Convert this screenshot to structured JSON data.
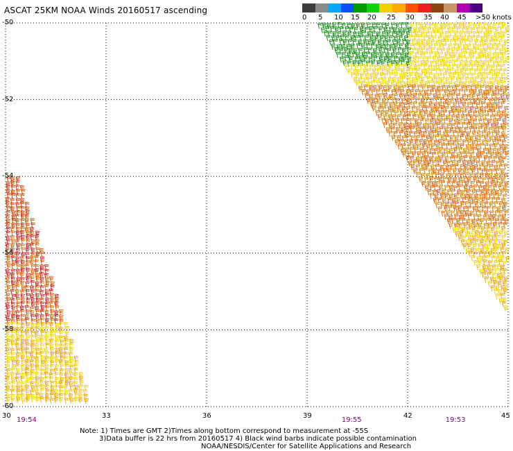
{
  "title": "ASCAT 25KM NOAA Winds 20160517 ascending",
  "legend": {
    "labels": [
      "0",
      "5",
      "10",
      "15",
      "20",
      "25",
      "30",
      "35",
      "40",
      "45",
      ">50 knots"
    ],
    "colors": [
      "#3c3c3c",
      "#8c8c8c",
      "#00a9ff",
      "#0a50ff",
      "#009900",
      "#0fd20f",
      "#f0d000",
      "#ffaa00",
      "#ff5000",
      "#ee1c24",
      "#8b4513",
      "#c89664",
      "#b400b4",
      "#4b0082"
    ]
  },
  "map": {
    "latitudes": [
      "-50",
      "-52",
      "-54",
      "-56",
      "-58",
      "-60"
    ],
    "longitudes": [
      "30",
      "33",
      "36",
      "39",
      "42",
      "45"
    ],
    "lat_range": [
      -60,
      -50
    ],
    "lon_range": [
      30,
      45
    ],
    "grid": "dotted",
    "pass_times": [
      {
        "label": "19:54",
        "lon": 30.6
      },
      {
        "label": "19:55",
        "lon": 40.3
      },
      {
        "label": "19:53",
        "lon": 43.4
      }
    ]
  },
  "notes": {
    "line1": "Note: 1) Times are GMT 2)Times along bottom correspond to measurement at -55S",
    "line2": "3)Data buffer is 22 hrs from 20160517 4) Black wind barbs indicate possible contamination",
    "line3": "NOAA/NESDIS/Center for Satellite Applications and Research"
  }
}
